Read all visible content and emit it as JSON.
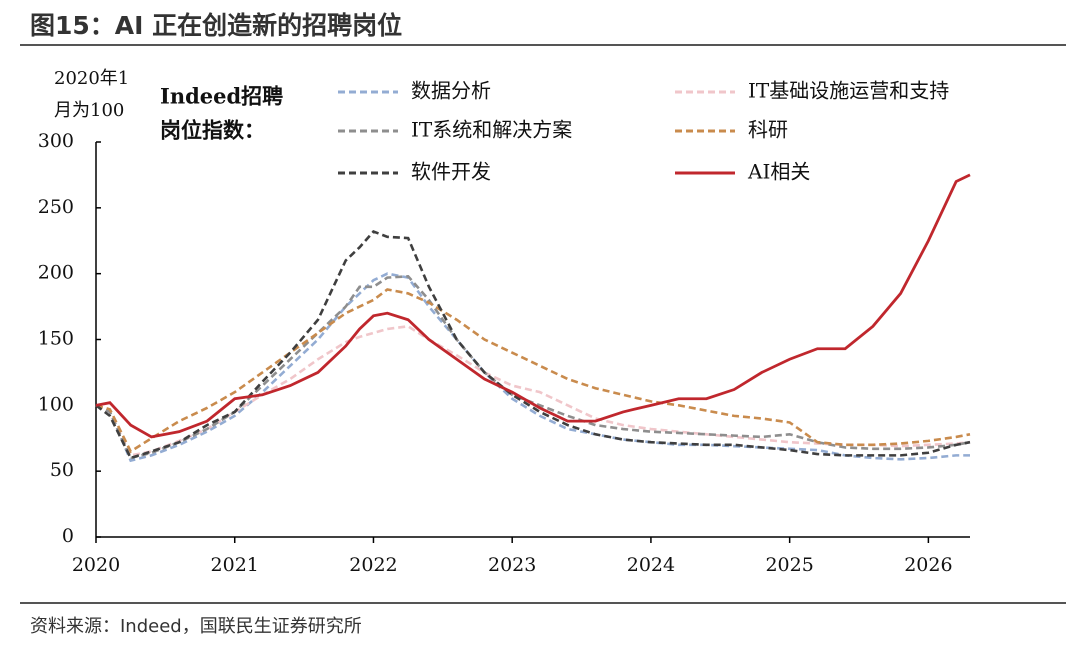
{
  "chart_data": {
    "type": "line",
    "title": "图15：AI 正在创造新的招聘岗位",
    "ylabel_lines": [
      "2020年1",
      "月为100"
    ],
    "legend_title_lines": [
      "Indeed招聘",
      "岗位指数："
    ],
    "source": "资料来源：Indeed，国联民生证券研究所",
    "x": [
      2020,
      2020.1,
      2020.25,
      2020.4,
      2020.6,
      2020.8,
      2021,
      2021.2,
      2021.4,
      2021.6,
      2021.8,
      2021.9,
      2022,
      2022.1,
      2022.25,
      2022.4,
      2022.6,
      2022.8,
      2023,
      2023.2,
      2023.4,
      2023.6,
      2023.8,
      2024,
      2024.2,
      2024.4,
      2024.6,
      2024.8,
      2025,
      2025.2,
      2025.4,
      2025.6,
      2025.8,
      2026,
      2026.2,
      2026.3
    ],
    "xlim": [
      2020,
      2026.3
    ],
    "xticks": [
      2020,
      2021,
      2022,
      2023,
      2024,
      2025,
      2026
    ],
    "ylim": [
      0,
      300
    ],
    "yticks": [
      0,
      50,
      100,
      150,
      200,
      250,
      300
    ],
    "series": [
      {
        "name": "数据分析",
        "color": "#93acd3",
        "dash": true,
        "values": [
          100,
          95,
          58,
          62,
          70,
          80,
          92,
          110,
          130,
          150,
          175,
          185,
          195,
          200,
          197,
          175,
          150,
          125,
          105,
          92,
          82,
          78,
          74,
          72,
          70,
          70,
          69,
          68,
          67,
          66,
          62,
          60,
          59,
          60,
          62,
          62
        ]
      },
      {
        "name": "IT基础设施运营和支持",
        "color": "#f0c6ca",
        "dash": true,
        "values": [
          100,
          95,
          62,
          65,
          73,
          82,
          95,
          108,
          120,
          135,
          148,
          152,
          155,
          158,
          160,
          150,
          138,
          125,
          115,
          110,
          100,
          90,
          85,
          82,
          80,
          78,
          76,
          74,
          72,
          71,
          70,
          70,
          69,
          70,
          71,
          72
        ]
      },
      {
        "name": "IT系统和解决方案",
        "color": "#8e8e8e",
        "dash": true,
        "values": [
          100,
          95,
          60,
          64,
          72,
          82,
          95,
          115,
          135,
          155,
          175,
          190,
          190,
          197,
          198,
          180,
          150,
          125,
          108,
          100,
          92,
          85,
          82,
          80,
          79,
          78,
          77,
          76,
          78,
          72,
          68,
          67,
          67,
          68,
          70,
          72
        ]
      },
      {
        "name": "科研",
        "color": "#c98b4d",
        "dash": true,
        "values": [
          100,
          97,
          65,
          75,
          88,
          98,
          110,
          125,
          140,
          155,
          170,
          175,
          180,
          188,
          185,
          178,
          165,
          150,
          140,
          130,
          120,
          113,
          108,
          103,
          100,
          96,
          92,
          90,
          87,
          72,
          70,
          70,
          71,
          73,
          76,
          78
        ]
      },
      {
        "name": "软件开发",
        "color": "#3f3f3f",
        "dash": true,
        "values": [
          100,
          92,
          60,
          65,
          72,
          85,
          95,
          118,
          140,
          165,
          210,
          220,
          232,
          228,
          227,
          190,
          150,
          125,
          108,
          95,
          85,
          78,
          74,
          72,
          71,
          70,
          70,
          68,
          66,
          63,
          62,
          62,
          62,
          64,
          70,
          72
        ]
      },
      {
        "name": "AI相关",
        "color": "#c0272d",
        "dash": false,
        "values": [
          100,
          102,
          85,
          76,
          80,
          88,
          105,
          108,
          115,
          125,
          145,
          158,
          168,
          170,
          165,
          150,
          135,
          120,
          110,
          98,
          88,
          88,
          95,
          100,
          105,
          105,
          112,
          125,
          135,
          143,
          143,
          160,
          185,
          225,
          270,
          275
        ]
      }
    ]
  }
}
